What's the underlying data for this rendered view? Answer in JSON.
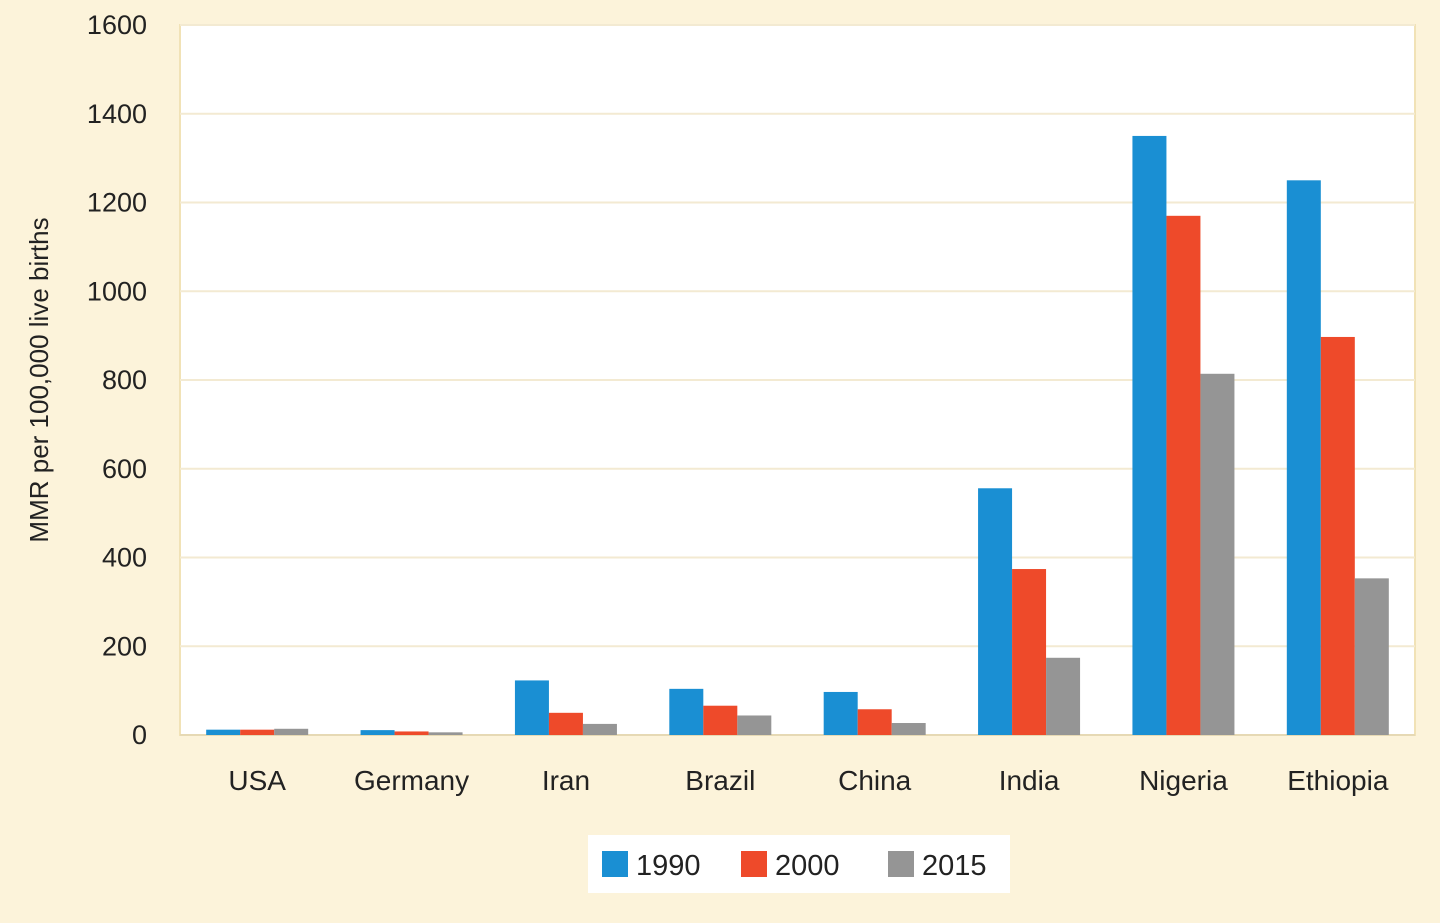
{
  "colors": {
    "background": "#fcf3da",
    "plot_background": "#ffffff",
    "gridline": "#f3ead2",
    "axis": "#e6d9b4",
    "plot_border": "#f1e2b6",
    "legend_background": "#ffffff"
  },
  "chart_data": {
    "type": "bar",
    "title": "",
    "xlabel": "",
    "ylabel": "MMR per 100,000 live births",
    "ylim": [
      0,
      1600
    ],
    "yticks": [
      0,
      200,
      400,
      600,
      800,
      1000,
      1200,
      1400,
      1600
    ],
    "grid": true,
    "legend_position": "bottom-center",
    "categories": [
      "USA",
      "Germany",
      "Iran",
      "Brazil",
      "China",
      "India",
      "Nigeria",
      "Ethiopia"
    ],
    "series": [
      {
        "name": "1990",
        "color": "#1a8fd3",
        "values": [
          12,
          11,
          123,
          104,
          97,
          556,
          1350,
          1250
        ]
      },
      {
        "name": "2000",
        "color": "#ee4a2a",
        "values": [
          12,
          8,
          50,
          66,
          58,
          374,
          1170,
          897
        ]
      },
      {
        "name": "2015",
        "color": "#959595",
        "values": [
          14,
          6,
          25,
          44,
          27,
          174,
          814,
          353
        ]
      }
    ]
  }
}
